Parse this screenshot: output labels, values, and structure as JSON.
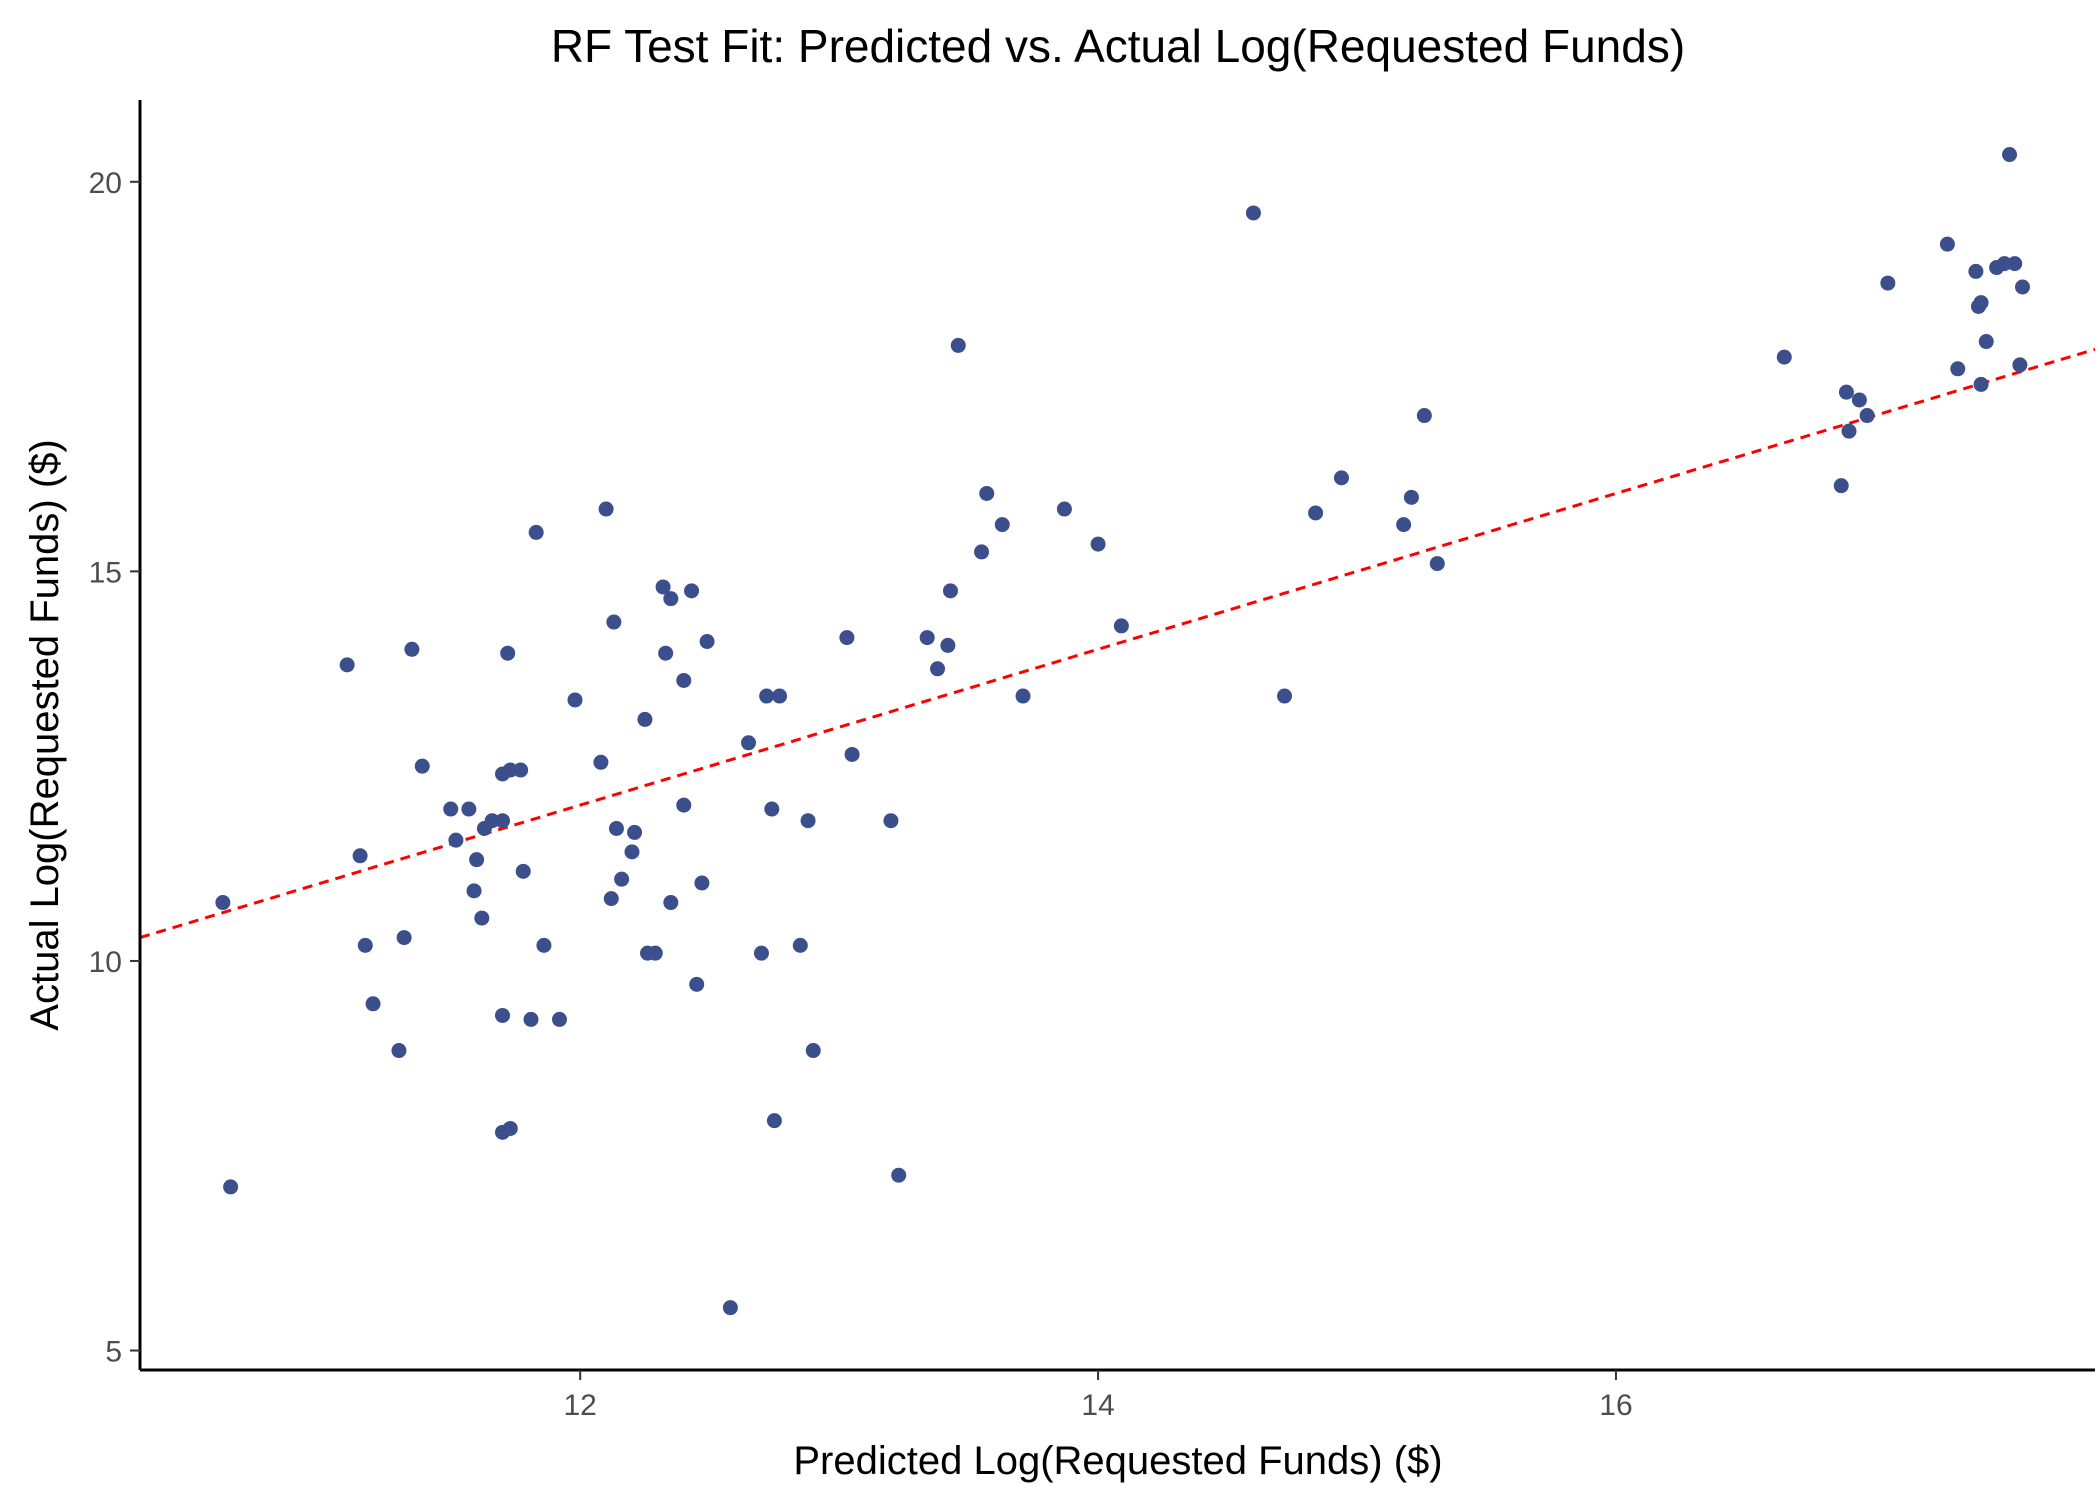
{
  "chart_data": {
    "type": "scatter",
    "title": "RF Test Fit: Predicted vs. Actual Log(Requested Funds)",
    "xlabel": "Predicted Log(Requested Funds) ($)",
    "ylabel": "Actual Log(Requested Funds) ($)",
    "xlim": [
      10.3,
      17.85
    ],
    "ylim": [
      4.75,
      21.05
    ],
    "x_ticks": [
      12,
      14,
      16
    ],
    "y_ticks": [
      5,
      10,
      15,
      20
    ],
    "x_tick_labels": [
      "12",
      "14",
      "16"
    ],
    "y_tick_labels": [
      "5",
      "10",
      "15",
      "20"
    ],
    "grid": false,
    "legend": "none",
    "reference_line": {
      "type": "y=x",
      "style": "dashed",
      "color": "#ff0000"
    },
    "point_color": "#3b4f8c",
    "points": [
      {
        "x": 10.62,
        "y": 10.75
      },
      {
        "x": 10.65,
        "y": 7.1
      },
      {
        "x": 11.1,
        "y": 13.8
      },
      {
        "x": 11.15,
        "y": 11.35
      },
      {
        "x": 11.17,
        "y": 10.2
      },
      {
        "x": 11.2,
        "y": 9.45
      },
      {
        "x": 11.3,
        "y": 8.85
      },
      {
        "x": 11.32,
        "y": 10.3
      },
      {
        "x": 11.35,
        "y": 14.0
      },
      {
        "x": 11.39,
        "y": 12.5
      },
      {
        "x": 11.5,
        "y": 11.95
      },
      {
        "x": 11.52,
        "y": 11.55
      },
      {
        "x": 11.57,
        "y": 11.95
      },
      {
        "x": 11.59,
        "y": 10.9
      },
      {
        "x": 11.6,
        "y": 11.3
      },
      {
        "x": 11.62,
        "y": 10.55
      },
      {
        "x": 11.63,
        "y": 11.7
      },
      {
        "x": 11.66,
        "y": 11.8
      },
      {
        "x": 11.7,
        "y": 7.8
      },
      {
        "x": 11.7,
        "y": 11.8
      },
      {
        "x": 11.7,
        "y": 12.4
      },
      {
        "x": 11.7,
        "y": 9.3
      },
      {
        "x": 11.72,
        "y": 13.95
      },
      {
        "x": 11.73,
        "y": 7.85
      },
      {
        "x": 11.73,
        "y": 12.45
      },
      {
        "x": 11.77,
        "y": 12.45
      },
      {
        "x": 11.78,
        "y": 11.15
      },
      {
        "x": 11.81,
        "y": 9.25
      },
      {
        "x": 11.83,
        "y": 15.5
      },
      {
        "x": 11.86,
        "y": 10.2
      },
      {
        "x": 11.92,
        "y": 9.25
      },
      {
        "x": 11.98,
        "y": 13.35
      },
      {
        "x": 12.08,
        "y": 12.55
      },
      {
        "x": 12.1,
        "y": 15.8
      },
      {
        "x": 12.12,
        "y": 10.8
      },
      {
        "x": 12.13,
        "y": 14.35
      },
      {
        "x": 12.14,
        "y": 11.7
      },
      {
        "x": 12.16,
        "y": 11.05
      },
      {
        "x": 12.2,
        "y": 11.4
      },
      {
        "x": 12.21,
        "y": 11.65
      },
      {
        "x": 12.25,
        "y": 13.1
      },
      {
        "x": 12.26,
        "y": 10.1
      },
      {
        "x": 12.29,
        "y": 10.1
      },
      {
        "x": 12.32,
        "y": 14.8
      },
      {
        "x": 12.33,
        "y": 13.95
      },
      {
        "x": 12.35,
        "y": 14.65
      },
      {
        "x": 12.35,
        "y": 10.75
      },
      {
        "x": 12.4,
        "y": 13.6
      },
      {
        "x": 12.4,
        "y": 12.0
      },
      {
        "x": 12.43,
        "y": 14.75
      },
      {
        "x": 12.45,
        "y": 9.7
      },
      {
        "x": 12.47,
        "y": 11.0
      },
      {
        "x": 12.49,
        "y": 14.1
      },
      {
        "x": 12.58,
        "y": 5.55
      },
      {
        "x": 12.65,
        "y": 12.8
      },
      {
        "x": 12.7,
        "y": 10.1
      },
      {
        "x": 12.72,
        "y": 13.4
      },
      {
        "x": 12.74,
        "y": 11.95
      },
      {
        "x": 12.75,
        "y": 7.95
      },
      {
        "x": 12.77,
        "y": 13.4
      },
      {
        "x": 12.85,
        "y": 10.2
      },
      {
        "x": 12.88,
        "y": 11.8
      },
      {
        "x": 12.9,
        "y": 8.85
      },
      {
        "x": 13.03,
        "y": 14.15
      },
      {
        "x": 13.05,
        "y": 12.65
      },
      {
        "x": 13.2,
        "y": 11.8
      },
      {
        "x": 13.23,
        "y": 7.25
      },
      {
        "x": 13.34,
        "y": 14.15
      },
      {
        "x": 13.38,
        "y": 13.75
      },
      {
        "x": 13.42,
        "y": 14.05
      },
      {
        "x": 13.43,
        "y": 14.75
      },
      {
        "x": 13.46,
        "y": 17.9
      },
      {
        "x": 13.55,
        "y": 15.25
      },
      {
        "x": 13.57,
        "y": 16.0
      },
      {
        "x": 13.63,
        "y": 15.6
      },
      {
        "x": 13.71,
        "y": 13.4
      },
      {
        "x": 13.87,
        "y": 15.8
      },
      {
        "x": 14.0,
        "y": 15.35
      },
      {
        "x": 14.09,
        "y": 14.3
      },
      {
        "x": 14.6,
        "y": 19.6
      },
      {
        "x": 14.72,
        "y": 13.4
      },
      {
        "x": 14.84,
        "y": 15.75
      },
      {
        "x": 14.94,
        "y": 16.2
      },
      {
        "x": 15.18,
        "y": 15.6
      },
      {
        "x": 15.21,
        "y": 15.95
      },
      {
        "x": 15.26,
        "y": 17.0
      },
      {
        "x": 15.31,
        "y": 15.1
      },
      {
        "x": 16.65,
        "y": 17.75
      },
      {
        "x": 16.87,
        "y": 16.1
      },
      {
        "x": 16.89,
        "y": 17.3
      },
      {
        "x": 16.9,
        "y": 16.8
      },
      {
        "x": 16.94,
        "y": 17.2
      },
      {
        "x": 16.97,
        "y": 17.0
      },
      {
        "x": 17.05,
        "y": 18.7
      },
      {
        "x": 17.28,
        "y": 19.2
      },
      {
        "x": 17.32,
        "y": 17.6
      },
      {
        "x": 17.39,
        "y": 18.85
      },
      {
        "x": 17.4,
        "y": 18.4
      },
      {
        "x": 17.41,
        "y": 18.45
      },
      {
        "x": 17.41,
        "y": 17.4
      },
      {
        "x": 17.43,
        "y": 17.95
      },
      {
        "x": 17.47,
        "y": 18.9
      },
      {
        "x": 17.5,
        "y": 18.95
      },
      {
        "x": 17.52,
        "y": 20.35
      },
      {
        "x": 17.54,
        "y": 18.95
      },
      {
        "x": 17.56,
        "y": 17.65
      },
      {
        "x": 17.57,
        "y": 18.65
      }
    ]
  }
}
